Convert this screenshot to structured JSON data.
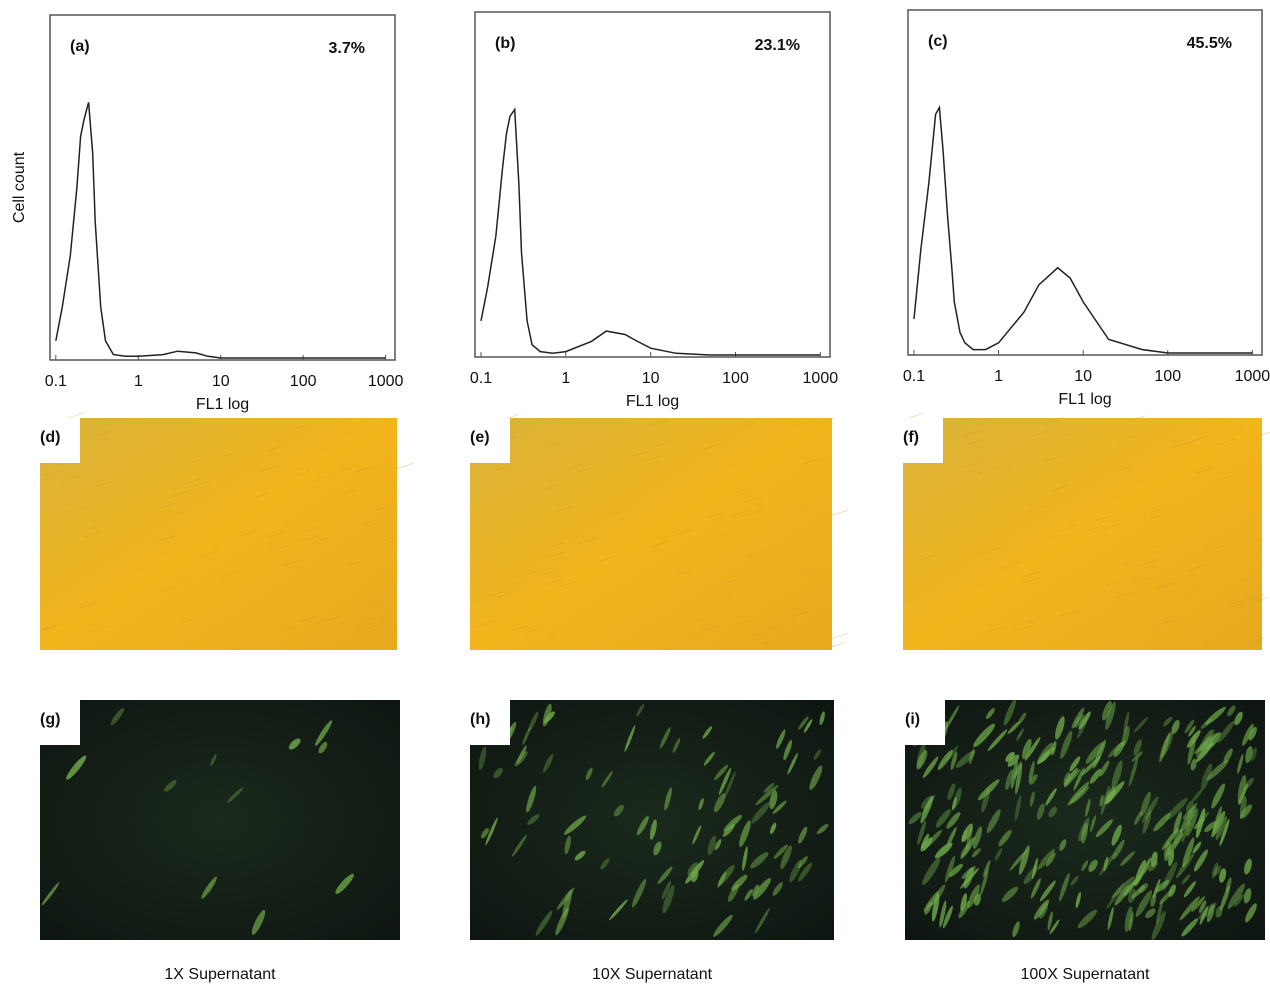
{
  "chart_data": [
    {
      "type": "line",
      "panel_label": "(a)",
      "annotation": "3.7%",
      "y_label": "Cell count",
      "x_label": "FL1 log",
      "log_x": true,
      "xlim": [
        0.085,
        1300
      ],
      "ylim": [
        0,
        100
      ],
      "xticks": [
        0.1,
        1,
        10,
        100,
        1000
      ],
      "color": "#222",
      "x": [
        0.1,
        0.12,
        0.15,
        0.18,
        0.2,
        0.22,
        0.25,
        0.28,
        0.3,
        0.35,
        0.4,
        0.5,
        0.7,
        1,
        2,
        3,
        5,
        7,
        10,
        20,
        50,
        100,
        1000
      ],
      "values": [
        5,
        15,
        30,
        50,
        65,
        70,
        75,
        60,
        40,
        15,
        5,
        1,
        0.5,
        0.5,
        1,
        2,
        1.5,
        0.5,
        0,
        0,
        0,
        0,
        0
      ]
    },
    {
      "type": "line",
      "panel_label": "(b)",
      "annotation": "23.1%",
      "x_label": "FL1 log",
      "log_x": true,
      "xlim": [
        0.085,
        1300
      ],
      "ylim": [
        0,
        100
      ],
      "xticks": [
        0.1,
        1,
        10,
        100,
        1000
      ],
      "color": "#222",
      "x": [
        0.1,
        0.12,
        0.15,
        0.18,
        0.2,
        0.22,
        0.25,
        0.28,
        0.3,
        0.35,
        0.4,
        0.5,
        0.7,
        1,
        2,
        3,
        5,
        7,
        10,
        20,
        50,
        100,
        1000
      ],
      "values": [
        10,
        20,
        35,
        55,
        65,
        70,
        72,
        50,
        30,
        10,
        3,
        1,
        0.5,
        1,
        4,
        7,
        6,
        4,
        2,
        0.5,
        0,
        0,
        0
      ]
    },
    {
      "type": "line",
      "panel_label": "(c)",
      "annotation": "45.5%",
      "x_label": "FL1 log",
      "log_x": true,
      "xlim": [
        0.085,
        1300
      ],
      "ylim": [
        0,
        100
      ],
      "xticks": [
        0.1,
        1,
        10,
        100,
        1000
      ],
      "color": "#222",
      "x": [
        0.1,
        0.12,
        0.15,
        0.18,
        0.2,
        0.22,
        0.25,
        0.28,
        0.3,
        0.35,
        0.4,
        0.5,
        0.7,
        1,
        2,
        3,
        5,
        7,
        10,
        20,
        50,
        100,
        1000
      ],
      "values": [
        10,
        30,
        50,
        70,
        72,
        60,
        40,
        25,
        15,
        6,
        3,
        1,
        1,
        3,
        12,
        20,
        25,
        22,
        15,
        4,
        1,
        0,
        0
      ]
    }
  ],
  "brightfield": [
    {
      "label": "(d)"
    },
    {
      "label": "(e)"
    },
    {
      "label": "(f)"
    }
  ],
  "fluorescence": [
    {
      "label": "(g)",
      "caption": "1X Supernatant"
    },
    {
      "label": "(h)",
      "caption": "10X Supernatant"
    },
    {
      "label": "(i)",
      "caption": "100X Supernatant"
    }
  ]
}
